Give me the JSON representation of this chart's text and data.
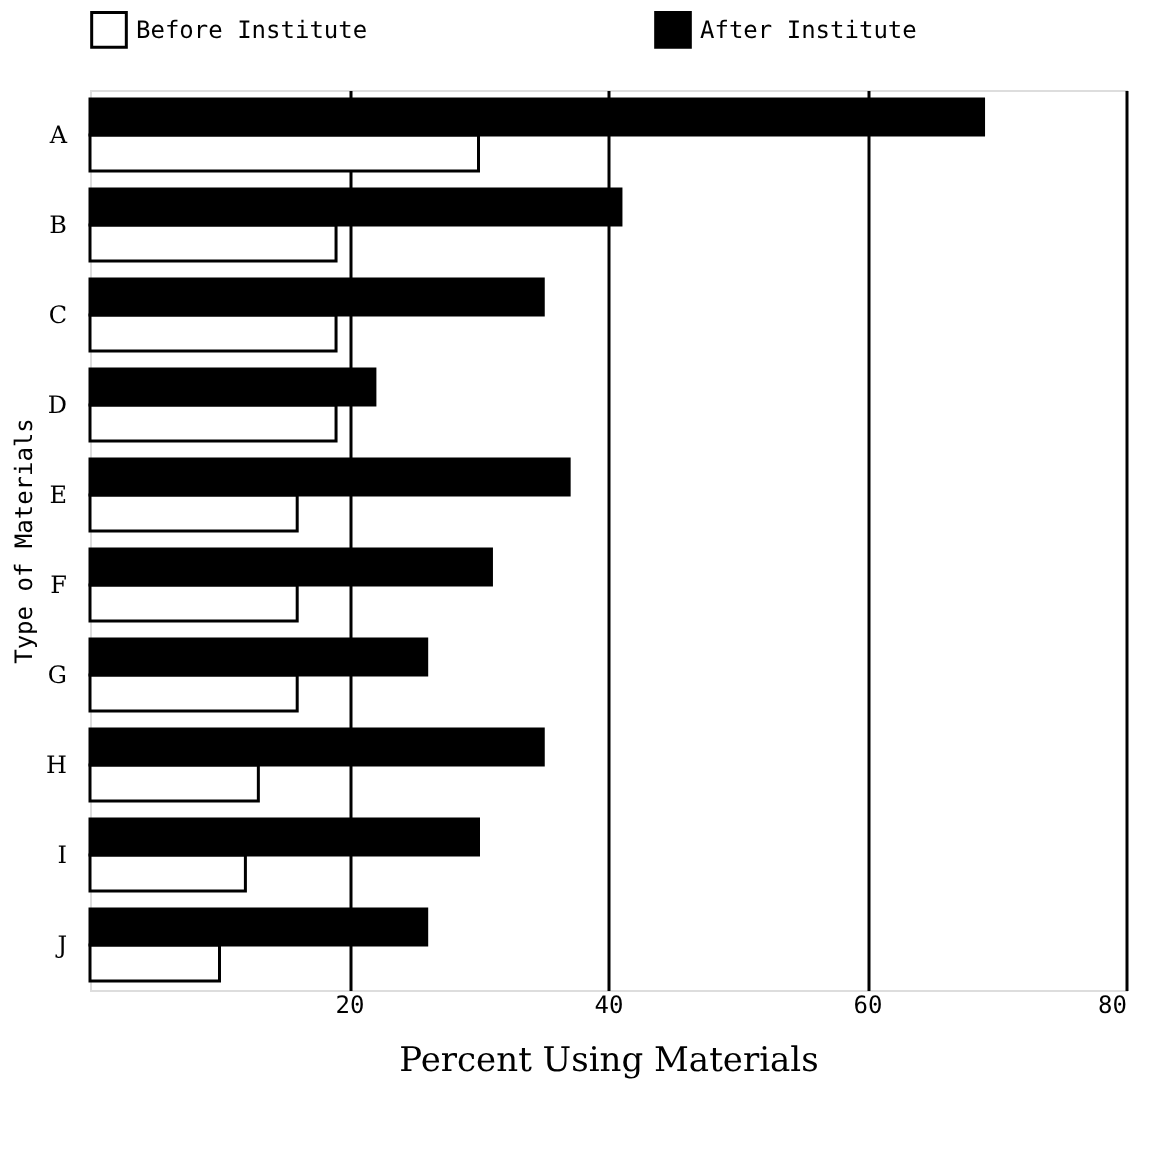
{
  "chart_data": {
    "type": "bar",
    "orientation": "horizontal",
    "xlabel": "Percent Using Materials",
    "ylabel": "Type of Materials",
    "categories": [
      "A",
      "B",
      "C",
      "D",
      "E",
      "F",
      "G",
      "H",
      "I",
      "J"
    ],
    "series": [
      {
        "name": "Before Institute",
        "color": "#ffffff",
        "values": [
          30,
          19,
          19,
          19,
          16,
          16,
          16,
          13,
          12,
          10
        ]
      },
      {
        "name": "After Institute",
        "color": "#000000",
        "values": [
          69,
          41,
          35,
          22,
          37,
          31,
          26,
          35,
          30,
          26
        ]
      }
    ],
    "xlim": [
      0,
      80
    ],
    "xticks": [
      20,
      40,
      60,
      80
    ],
    "grid": "x",
    "legend": "top"
  }
}
